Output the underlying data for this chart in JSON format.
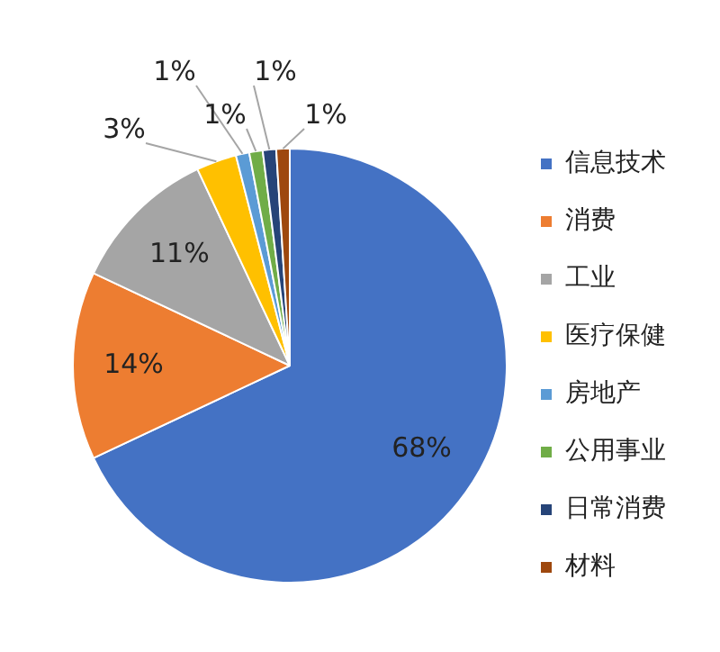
{
  "chart_data": {
    "type": "pie",
    "categories": [
      "信息技术",
      "消费",
      "工业",
      "医疗保健",
      "房地产",
      "公用事业",
      "日常消费",
      "材料"
    ],
    "values": [
      68,
      14,
      11,
      3,
      1,
      1,
      1,
      1
    ],
    "colors": [
      "#4472c4",
      "#ed7d31",
      "#a5a5a5",
      "#ffc000",
      "#5b9bd5",
      "#70ad47",
      "#264478",
      "#9e480e"
    ],
    "value_labels": [
      "68%",
      "14%",
      "11%",
      "3%",
      "1%",
      "1%",
      "1%",
      "1%"
    ],
    "legend": "right"
  }
}
